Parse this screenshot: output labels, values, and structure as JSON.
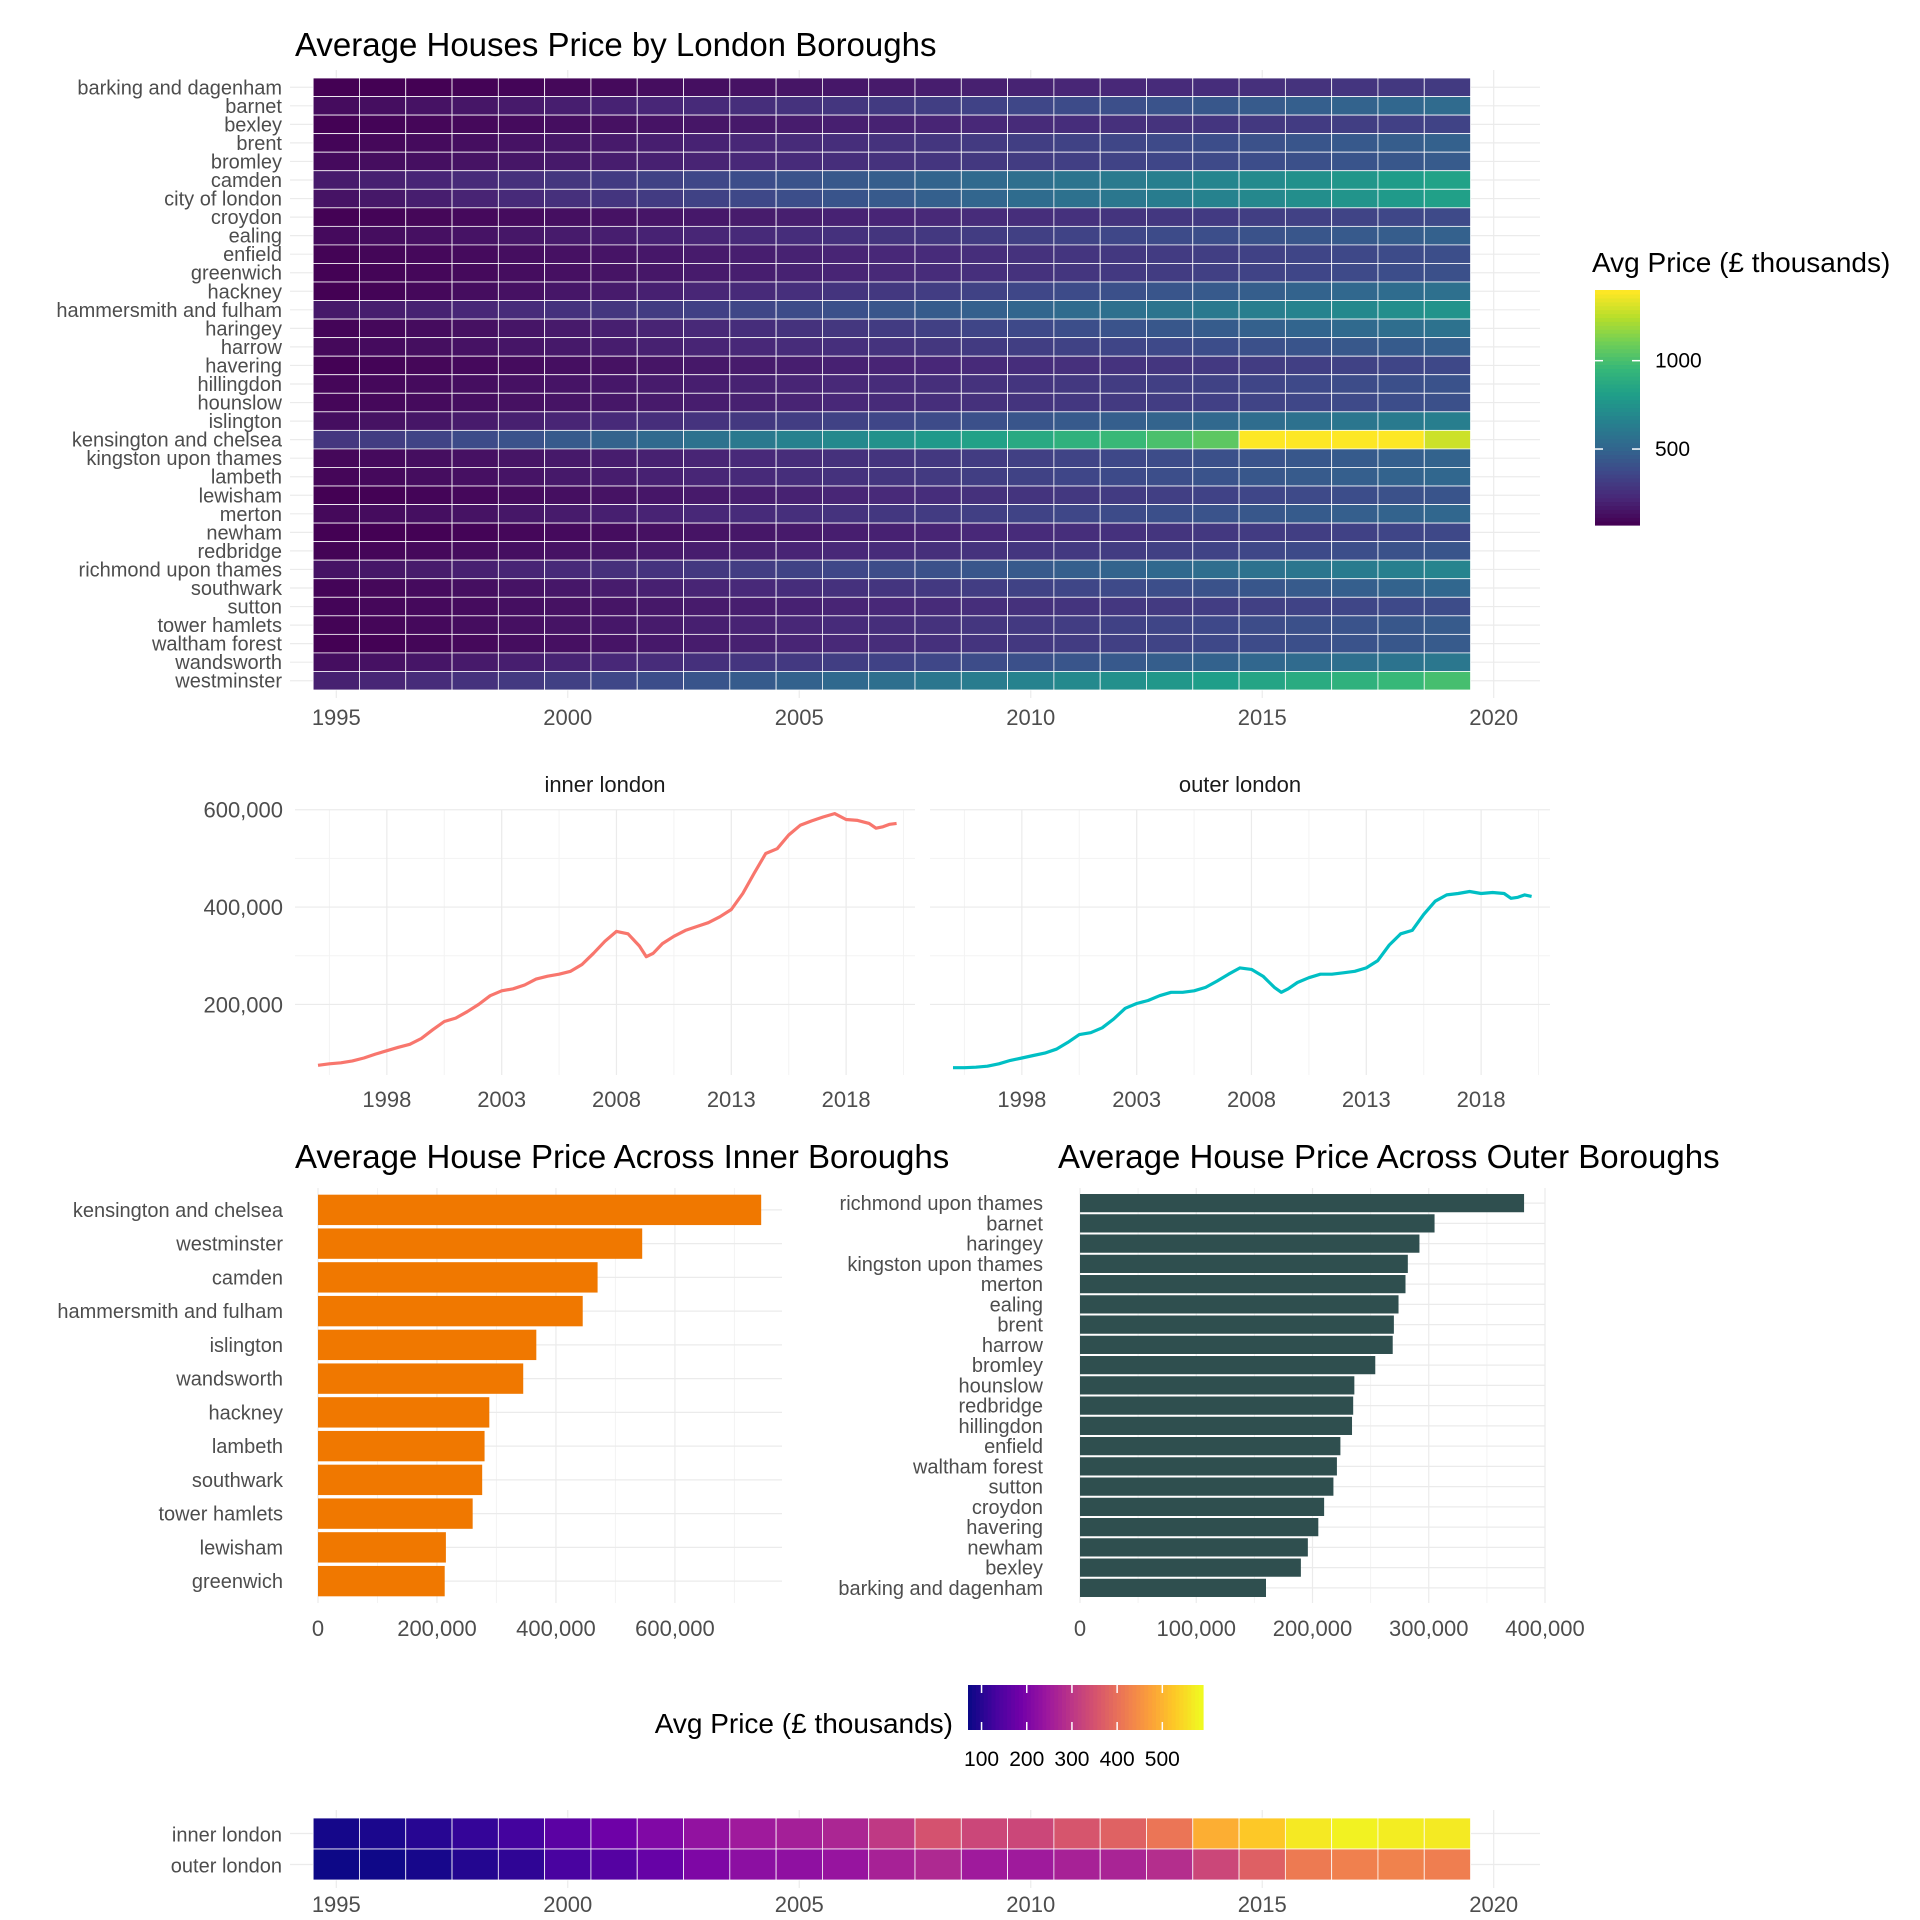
{
  "chart_data": [
    {
      "type": "heatmap",
      "title": "Average Houses Price by London Boroughs",
      "xlabel": "",
      "ylabel": "",
      "x_ticks": [
        1995,
        2000,
        2005,
        2010,
        2015,
        2020
      ],
      "xlim": [
        1994,
        2021
      ],
      "years": [
        1995,
        1996,
        1997,
        1998,
        1999,
        2000,
        2001,
        2002,
        2003,
        2004,
        2005,
        2006,
        2007,
        2008,
        2009,
        2010,
        2011,
        2012,
        2013,
        2014,
        2015,
        2016,
        2017,
        2018,
        2019
      ],
      "legend": {
        "title": "Avg Price (£ thousands)",
        "ticks": [
          500,
          1000
        ],
        "range": [
          70,
          1400
        ],
        "palette": "viridis",
        "placement": "right"
      },
      "rows": [
        {
          "name": "barking and dagenham",
          "start": 55,
          "end": 300
        },
        {
          "name": "barnet",
          "start": 110,
          "end": 530
        },
        {
          "name": "bexley",
          "start": 75,
          "end": 340
        },
        {
          "name": "brent",
          "start": 85,
          "end": 480
        },
        {
          "name": "bromley",
          "start": 105,
          "end": 450
        },
        {
          "name": "camden",
          "start": 170,
          "end": 830
        },
        {
          "name": "city of london",
          "start": 140,
          "end": 820
        },
        {
          "name": "croydon",
          "start": 75,
          "end": 370
        },
        {
          "name": "ealing",
          "start": 105,
          "end": 480
        },
        {
          "name": "enfield",
          "start": 80,
          "end": 390
        },
        {
          "name": "greenwich",
          "start": 75,
          "end": 400
        },
        {
          "name": "hackney",
          "start": 70,
          "end": 560
        },
        {
          "name": "hammersmith and fulham",
          "start": 160,
          "end": 750
        },
        {
          "name": "haringey",
          "start": 85,
          "end": 570
        },
        {
          "name": "harrow",
          "start": 100,
          "end": 470
        },
        {
          "name": "havering",
          "start": 75,
          "end": 360
        },
        {
          "name": "hillingdon",
          "start": 90,
          "end": 410
        },
        {
          "name": "hounslow",
          "start": 90,
          "end": 400
        },
        {
          "name": "islington",
          "start": 120,
          "end": 640
        },
        {
          "name": "kensington and chelsea",
          "start": 280,
          "end": 1300,
          "peak": 1400
        },
        {
          "name": "kingston upon thames",
          "start": 95,
          "end": 490
        },
        {
          "name": "lambeth",
          "start": 90,
          "end": 510
        },
        {
          "name": "lewisham",
          "start": 65,
          "end": 420
        },
        {
          "name": "merton",
          "start": 100,
          "end": 510
        },
        {
          "name": "newham",
          "start": 55,
          "end": 360
        },
        {
          "name": "redbridge",
          "start": 80,
          "end": 420
        },
        {
          "name": "richmond upon thames",
          "start": 140,
          "end": 670
        },
        {
          "name": "southwark",
          "start": 85,
          "end": 510
        },
        {
          "name": "sutton",
          "start": 85,
          "end": 380
        },
        {
          "name": "tower hamlets",
          "start": 80,
          "end": 450
        },
        {
          "name": "waltham forest",
          "start": 65,
          "end": 450
        },
        {
          "name": "wandsworth",
          "start": 120,
          "end": 600
        },
        {
          "name": "westminster",
          "start": 190,
          "end": 1000
        }
      ]
    },
    {
      "type": "line",
      "panels": [
        "inner london",
        "outer london"
      ],
      "x_ticks": [
        1998,
        2003,
        2008,
        2013,
        2018
      ],
      "y_ticks": [
        200000,
        400000,
        600000
      ],
      "y_tick_labels": [
        "200,000",
        "400,000",
        "600,000"
      ],
      "xlim": [
        1994,
        2021
      ],
      "ylim": [
        55000,
        620000
      ],
      "colors": [
        "#F8766D",
        "#00BFC4"
      ],
      "series": [
        {
          "x": [
            1995.0,
            1995.5,
            1996.0,
            1996.5,
            1997.0,
            1997.5,
            1998.0,
            1998.5,
            1999.0,
            1999.5,
            2000.0,
            2000.5,
            2001.0,
            2001.5,
            2002.0,
            2002.5,
            2003.0,
            2003.5,
            2004.0,
            2004.5,
            2005.0,
            2005.5,
            2006.0,
            2006.5,
            2007.0,
            2007.5,
            2008.0,
            2008.5,
            2009.0,
            2009.3,
            2009.6,
            2010.0,
            2010.5,
            2011.0,
            2011.5,
            2012.0,
            2012.5,
            2013.0,
            2013.5,
            2014.0,
            2014.5,
            2015.0,
            2015.5,
            2016.0,
            2016.5,
            2017.0,
            2017.5,
            2018.0,
            2018.5,
            2019.0,
            2019.3,
            2019.6,
            2019.9,
            2020.2
          ],
          "y": [
            75000,
            78000,
            80000,
            84000,
            90000,
            98000,
            105000,
            112000,
            118000,
            130000,
            148000,
            165000,
            172000,
            185000,
            200000,
            218000,
            228000,
            232000,
            240000,
            252000,
            258000,
            262000,
            268000,
            282000,
            305000,
            330000,
            350000,
            345000,
            320000,
            298000,
            305000,
            325000,
            340000,
            352000,
            360000,
            368000,
            380000,
            395000,
            428000,
            470000,
            510000,
            520000,
            548000,
            568000,
            577000,
            585000,
            592000,
            580000,
            578000,
            572000,
            562000,
            565000,
            570000,
            572000
          ]
        },
        {
          "x": [
            1995.0,
            1995.5,
            1996.0,
            1996.5,
            1997.0,
            1997.5,
            1998.0,
            1998.5,
            1999.0,
            1999.5,
            2000.0,
            2000.5,
            2001.0,
            2001.5,
            2002.0,
            2002.5,
            2003.0,
            2003.5,
            2004.0,
            2004.5,
            2005.0,
            2005.5,
            2006.0,
            2006.5,
            2007.0,
            2007.5,
            2008.0,
            2008.5,
            2009.0,
            2009.3,
            2009.6,
            2010.0,
            2010.5,
            2011.0,
            2011.5,
            2012.0,
            2012.5,
            2013.0,
            2013.5,
            2014.0,
            2014.5,
            2015.0,
            2015.5,
            2016.0,
            2016.5,
            2017.0,
            2017.5,
            2018.0,
            2018.5,
            2019.0,
            2019.3,
            2019.6,
            2019.9,
            2020.2
          ],
          "y": [
            70000,
            70000,
            71000,
            73000,
            78000,
            85000,
            90000,
            95000,
            100000,
            108000,
            122000,
            138000,
            142000,
            152000,
            170000,
            192000,
            202000,
            208000,
            218000,
            225000,
            225000,
            228000,
            235000,
            248000,
            262000,
            275000,
            272000,
            258000,
            235000,
            225000,
            232000,
            245000,
            255000,
            262000,
            262000,
            265000,
            268000,
            275000,
            290000,
            322000,
            345000,
            352000,
            385000,
            412000,
            425000,
            428000,
            432000,
            428000,
            430000,
            428000,
            418000,
            420000,
            425000,
            422000
          ]
        }
      ]
    },
    {
      "type": "bar",
      "orientation": "horizontal",
      "title": "Average House Price Across Inner Boroughs",
      "color": "#F07800",
      "x_ticks": [
        0,
        200000,
        400000,
        600000
      ],
      "x_tick_labels": [
        "0",
        "200,000",
        "400,000",
        "600,000"
      ],
      "xlim": [
        0,
        780000
      ],
      "categories": [
        "kensington and chelsea",
        "westminster",
        "camden",
        "hammersmith and fulham",
        "islington",
        "wandsworth",
        "hackney",
        "lambeth",
        "southwark",
        "tower hamlets",
        "lewisham",
        "greenwich"
      ],
      "values": [
        745000,
        545000,
        470000,
        445000,
        367000,
        345000,
        288000,
        280000,
        276000,
        260000,
        215000,
        213000
      ]
    },
    {
      "type": "bar",
      "orientation": "horizontal",
      "title": "Average House Price Across Outer Boroughs",
      "color": "#2F4F4F",
      "x_ticks": [
        0,
        100000,
        200000,
        300000,
        400000
      ],
      "x_tick_labels": [
        "0",
        "100,000",
        "200,000",
        "300,000",
        "400,000"
      ],
      "xlim": [
        0,
        400000
      ],
      "categories": [
        "richmond upon thames",
        "barnet",
        "haringey",
        "kingston upon thames",
        "merton",
        "ealing",
        "brent",
        "harrow",
        "bromley",
        "hounslow",
        "redbridge",
        "hillingdon",
        "enfield",
        "waltham forest",
        "sutton",
        "croydon",
        "havering",
        "newham",
        "bexley",
        "barking and dagenham"
      ],
      "values": [
        382000,
        305000,
        292000,
        282000,
        280000,
        274000,
        270000,
        269000,
        254000,
        236000,
        235000,
        234000,
        224000,
        221000,
        218000,
        210000,
        205000,
        196000,
        190000,
        160000
      ]
    },
    {
      "type": "heatmap",
      "legend": {
        "title": "Avg Price (£ thousands)",
        "ticks": [
          100,
          200,
          300,
          400,
          500
        ],
        "range": [
          70,
          590
        ],
        "palette": "plasma",
        "placement": "top"
      },
      "x_ticks": [
        1995,
        2000,
        2005,
        2010,
        2015,
        2020
      ],
      "xlim": [
        1994,
        2021
      ],
      "years": [
        1995,
        1996,
        1997,
        1998,
        1999,
        2000,
        2001,
        2002,
        2003,
        2004,
        2005,
        2006,
        2007,
        2008,
        2009,
        2010,
        2011,
        2012,
        2013,
        2014,
        2015,
        2016,
        2017,
        2018,
        2019
      ],
      "rows": [
        {
          "name": "inner london",
          "values": [
            78,
            84,
            96,
            110,
            126,
            156,
            180,
            205,
            230,
            248,
            258,
            270,
            305,
            350,
            330,
            330,
            355,
            378,
            410,
            495,
            530,
            570,
            582,
            575,
            572
          ]
        },
        {
          "name": "outer london",
          "values": [
            70,
            72,
            80,
            92,
            104,
            132,
            148,
            170,
            202,
            222,
            226,
            236,
            262,
            275,
            248,
            248,
            262,
            266,
            285,
            330,
            375,
            418,
            428,
            430,
            424
          ]
        }
      ]
    }
  ]
}
